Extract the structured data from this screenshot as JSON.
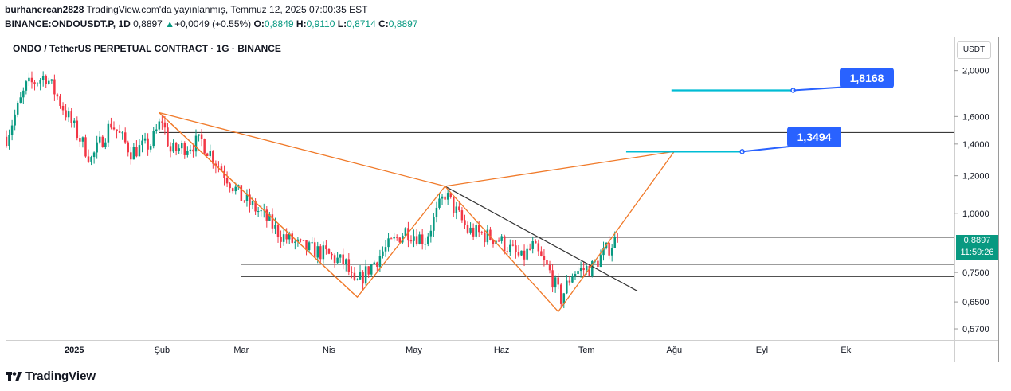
{
  "header": {
    "user": "burhanercan2828",
    "published": "TradingView.com'da yayınlanmış, Temmuz 12, 2025 07:00:35 EST",
    "symbol": "BINANCE:ONDOUSDT.P, 1D",
    "last": "0,8897",
    "change_arrow": "▲",
    "change": "+0,0049 (+0.55%)",
    "o_label": "O:",
    "o": "0,8849",
    "h_label": "H:",
    "h": "0,9110",
    "l_label": "L:",
    "l": "0,8714",
    "c_label": "C:",
    "c": "0,8897"
  },
  "chart_title": "ONDO / TetherUS PERPETUAL CONTRACT · 1G · BINANCE",
  "currency": "USDT",
  "price_tag": {
    "price": "0,8897",
    "countdown": "11:59:26"
  },
  "callouts": {
    "target1": "1,3494",
    "target2": "1,8168"
  },
  "brand": "TradingView",
  "colors": {
    "up": "#089981",
    "down": "#f23645",
    "pattern": "#f07a2a",
    "target_line": "#00bcd4",
    "callout": "#2962ff",
    "level": "#555555"
  },
  "chart_data": {
    "type": "candlestick",
    "y_scale": "log",
    "ylim": [
      0.54,
      2.35
    ],
    "xlim": [
      "2024-12-08",
      "2025-11-08"
    ],
    "y_ticks": [
      {
        "value": 2.0,
        "label": "2,0000"
      },
      {
        "value": 1.6,
        "label": "1,6000"
      },
      {
        "value": 1.4,
        "label": "1,4000"
      },
      {
        "value": 1.2,
        "label": "1,2000"
      },
      {
        "value": 1.0,
        "label": "1,0000"
      },
      {
        "value": 0.75,
        "label": "0,7500"
      },
      {
        "value": 0.65,
        "label": "0,6500"
      },
      {
        "value": 0.57,
        "label": "0,5700"
      }
    ],
    "x_ticks": [
      {
        "date": "2025-01-01",
        "label": "2025"
      },
      {
        "date": "2025-02-01",
        "label": "Şub"
      },
      {
        "date": "2025-03-01",
        "label": "Mar"
      },
      {
        "date": "2025-04-01",
        "label": "Nis"
      },
      {
        "date": "2025-05-01",
        "label": "May"
      },
      {
        "date": "2025-06-01",
        "label": "Haz"
      },
      {
        "date": "2025-07-01",
        "label": "Tem"
      },
      {
        "date": "2025-08-01",
        "label": "Ağu"
      },
      {
        "date": "2025-09-01",
        "label": "Eyl"
      },
      {
        "date": "2025-10-01",
        "label": "Eki"
      }
    ],
    "price_anchors": [
      [
        "2024-12-08",
        1.45
      ],
      [
        "2024-12-15",
        1.85
      ],
      [
        "2024-12-22",
        1.95
      ],
      [
        "2024-12-31",
        1.55
      ],
      [
        "2025-01-07",
        1.3
      ],
      [
        "2025-01-14",
        1.55
      ],
      [
        "2025-01-21",
        1.35
      ],
      [
        "2025-01-28",
        1.4
      ],
      [
        "2025-02-01",
        1.58
      ],
      [
        "2025-02-04",
        1.35
      ],
      [
        "2025-02-15",
        1.42
      ],
      [
        "2025-03-01",
        1.08
      ],
      [
        "2025-03-08",
        1.0
      ],
      [
        "2025-03-15",
        0.9
      ],
      [
        "2025-03-22",
        0.85
      ],
      [
        "2025-03-31",
        0.82
      ],
      [
        "2025-04-07",
        0.78
      ],
      [
        "2025-04-10",
        0.7
      ],
      [
        "2025-04-20",
        0.83
      ],
      [
        "2025-04-28",
        0.92
      ],
      [
        "2025-05-05",
        0.88
      ],
      [
        "2025-05-12",
        1.1
      ],
      [
        "2025-05-20",
        0.92
      ],
      [
        "2025-05-31",
        0.88
      ],
      [
        "2025-06-08",
        0.8
      ],
      [
        "2025-06-12",
        0.85
      ],
      [
        "2025-06-18",
        0.75
      ],
      [
        "2025-06-22",
        0.66
      ],
      [
        "2025-06-26",
        0.75
      ],
      [
        "2025-07-03",
        0.77
      ],
      [
        "2025-07-12",
        0.8897
      ]
    ],
    "patterns": [
      {
        "name": "harmonic-1",
        "points": [
          [
            "2025-01-31",
            1.63
          ],
          [
            "2025-04-11",
            0.665
          ],
          [
            "2025-05-12",
            1.14
          ],
          [
            "2025-06-21",
            0.62
          ],
          [
            "2025-08-01",
            1.35
          ],
          [
            "2025-05-12",
            1.14
          ]
        ]
      },
      {
        "name": "harmonic-2",
        "points": [
          [
            "2025-01-31",
            1.63
          ],
          [
            "2025-05-12",
            1.14
          ]
        ]
      },
      {
        "name": "harmonic-3",
        "points": [
          [
            "2025-01-31",
            1.63
          ],
          [
            "2025-04-11",
            0.665
          ]
        ]
      }
    ],
    "trendline": [
      [
        "2025-05-12",
        1.14
      ],
      [
        "2025-07-19",
        0.685
      ]
    ],
    "levels": [
      {
        "value": 1.48,
        "from": "2025-01-31"
      },
      {
        "value": 0.8897,
        "from": "2025-06-01"
      },
      {
        "value": 0.78,
        "from": "2025-03-01"
      },
      {
        "value": 0.735,
        "from": "2025-03-01"
      }
    ],
    "targets": [
      {
        "value": 1.3494,
        "from": "2025-07-15",
        "to": "2025-08-25",
        "label": "1,3494"
      },
      {
        "value": 1.8168,
        "from": "2025-07-31",
        "to": "2025-09-12",
        "label": "1,8168"
      }
    ]
  }
}
